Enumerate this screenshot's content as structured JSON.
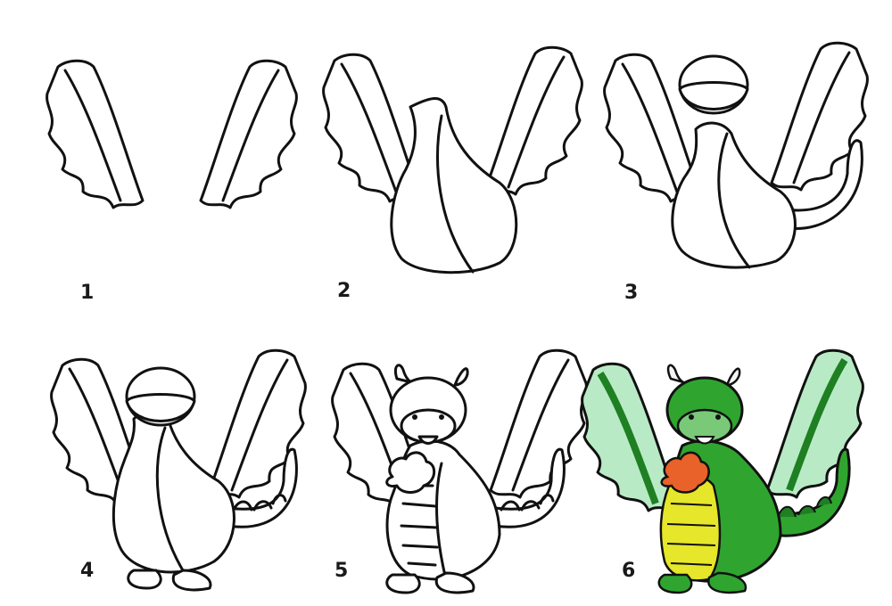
{
  "steps": [
    {
      "number": "1"
    },
    {
      "number": "2"
    },
    {
      "number": "3"
    },
    {
      "number": "4"
    },
    {
      "number": "5"
    },
    {
      "number": "6"
    }
  ],
  "colors": {
    "outline": "#111111",
    "paper": "#ffffff",
    "dragon_green": "#2fa52f",
    "dragon_dark_green": "#1f7f23",
    "belly_yellow": "#e6e62a",
    "wing_membrane": "#b8ebc5",
    "fire_orange": "#e8622a",
    "horn_white": "#f4f4f4"
  }
}
